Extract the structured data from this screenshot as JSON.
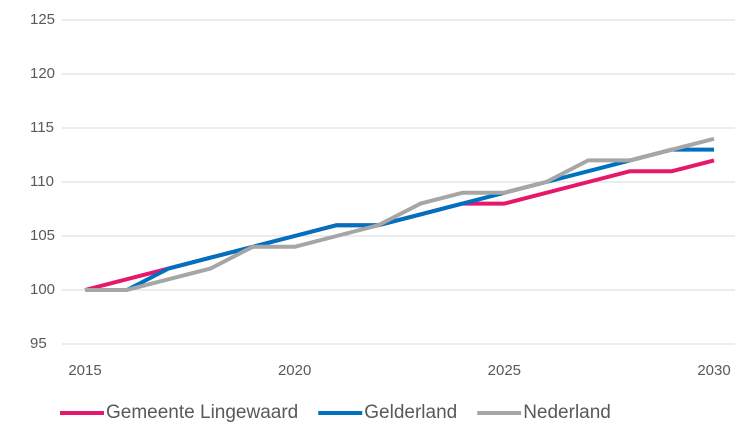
{
  "chart_data": {
    "type": "line",
    "x": [
      2015,
      2016,
      2017,
      2018,
      2019,
      2020,
      2021,
      2022,
      2023,
      2024,
      2025,
      2026,
      2027,
      2028,
      2029,
      2030
    ],
    "series": [
      {
        "name": "Gemeente Lingewaard",
        "color": "#e6186d",
        "values": [
          100,
          101,
          102,
          103,
          104,
          105,
          106,
          106,
          107,
          108,
          108,
          109,
          110,
          111,
          111,
          112
        ]
      },
      {
        "name": "Gelderland",
        "color": "#0070c0",
        "values": [
          100,
          100,
          102,
          103,
          104,
          105,
          106,
          106,
          107,
          108,
          109,
          110,
          111,
          112,
          113,
          113
        ]
      },
      {
        "name": "Nederland",
        "color": "#a6a6a6",
        "values": [
          100,
          100,
          101,
          102,
          104,
          104,
          105,
          106,
          108,
          109,
          109,
          110,
          112,
          112,
          113,
          114
        ]
      }
    ],
    "xlim": [
      2015,
      2030
    ],
    "xticks": [
      2015,
      2020,
      2025,
      2030
    ],
    "ylim": [
      95,
      125
    ],
    "yticks": [
      95,
      100,
      105,
      110,
      115,
      120,
      125
    ],
    "grid": true,
    "legend": "bottom"
  }
}
